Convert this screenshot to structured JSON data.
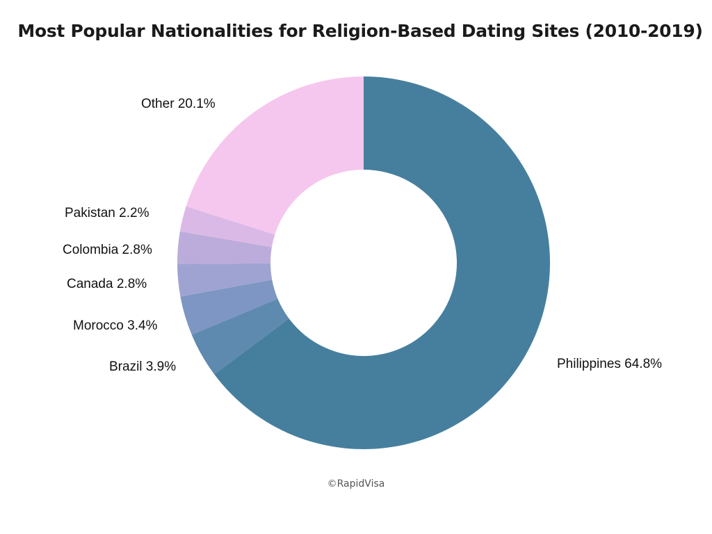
{
  "chart_data": {
    "type": "pie",
    "title": "Most Popular Nationalities for Religion-Based Dating Sites (2010-2019)",
    "slices": [
      {
        "label": "Philippines",
        "value": 64.8,
        "value_text": "64.8%",
        "color": "#467f9e"
      },
      {
        "label": "Brazil",
        "value": 3.9,
        "value_text": "3.9%",
        "color": "#5f8aaf"
      },
      {
        "label": "Morocco",
        "value": 3.4,
        "value_text": "3.4%",
        "color": "#7d96c3"
      },
      {
        "label": "Canada",
        "value": 2.8,
        "value_text": "2.8%",
        "color": "#9fa3d2"
      },
      {
        "label": "Colombia",
        "value": 2.8,
        "value_text": "2.8%",
        "color": "#bcacdb"
      },
      {
        "label": "Pakistan",
        "value": 2.2,
        "value_text": "2.2%",
        "color": "#dbb9e6"
      },
      {
        "label": "Other",
        "value": 20.1,
        "value_text": "20.1%",
        "color": "#f6c7ee"
      }
    ]
  },
  "credit": "©RapidVisa"
}
